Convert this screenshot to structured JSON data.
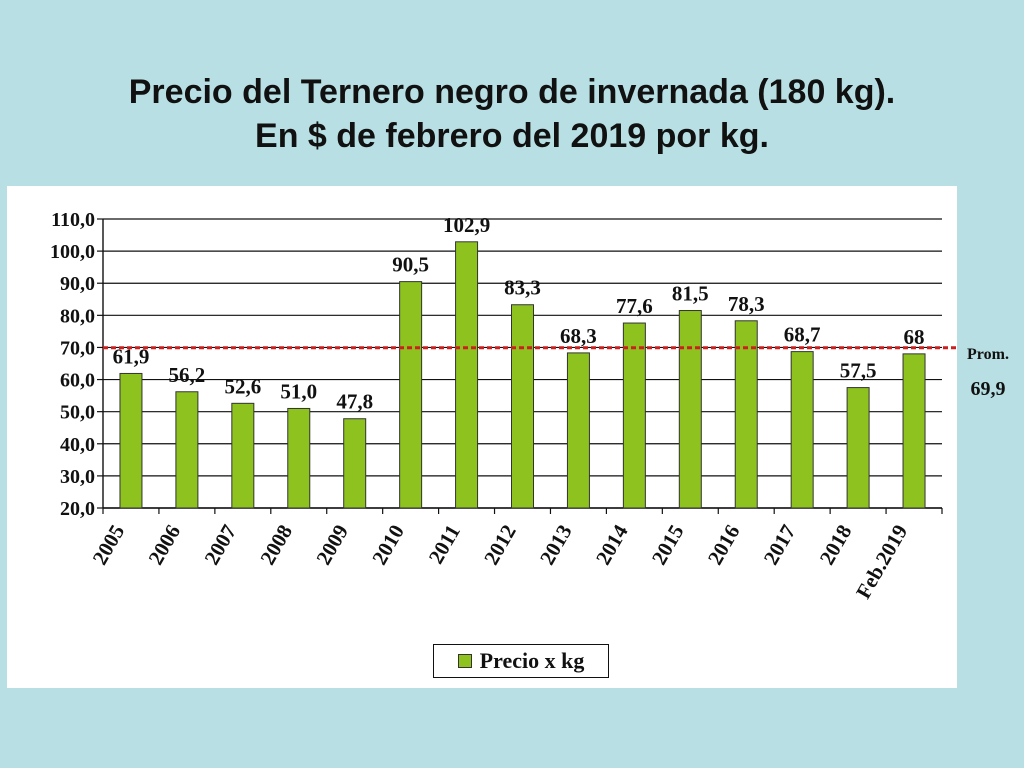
{
  "title_line1": "Precio del Ternero negro de invernada (180 kg).",
  "title_line2": "En $ de febrero del 2019 por kg.",
  "colors": {
    "bar": "#8dc21f",
    "bar_stroke": "#333333",
    "avg_line": "#cc1f1f",
    "background": "#b8e0e4"
  },
  "chart_data": {
    "type": "bar",
    "categories": [
      "2005",
      "2006",
      "2007",
      "2008",
      "2009",
      "2010",
      "2011",
      "2012",
      "2013",
      "2014",
      "2015",
      "2016",
      "2017",
      "2018",
      "Feb.2019"
    ],
    "series": [
      {
        "name": "Precio x kg",
        "values": [
          61.9,
          56.2,
          52.6,
          51.0,
          47.8,
          90.5,
          102.9,
          83.3,
          68.3,
          77.6,
          81.5,
          78.3,
          68.7,
          57.5,
          68
        ],
        "labels": [
          "61,9",
          "56,2",
          "52,6",
          "51,0",
          "47,8",
          "90,5",
          "102,9",
          "83,3",
          "68,3",
          "77,6",
          "81,5",
          "78,3",
          "68,7",
          "57,5",
          "68"
        ]
      }
    ],
    "yticks": [
      20,
      30,
      40,
      50,
      60,
      70,
      80,
      90,
      100,
      110
    ],
    "ytick_labels": [
      "20,0",
      "30,0",
      "40,0",
      "50,0",
      "60,0",
      "70,0",
      "80,0",
      "90,0",
      "100,0",
      "110,0"
    ],
    "ylim": [
      20,
      110
    ],
    "grid": true,
    "legend": "bottom",
    "average": {
      "value": 69.9,
      "label": "Prom.",
      "value_label": "69,9"
    }
  }
}
